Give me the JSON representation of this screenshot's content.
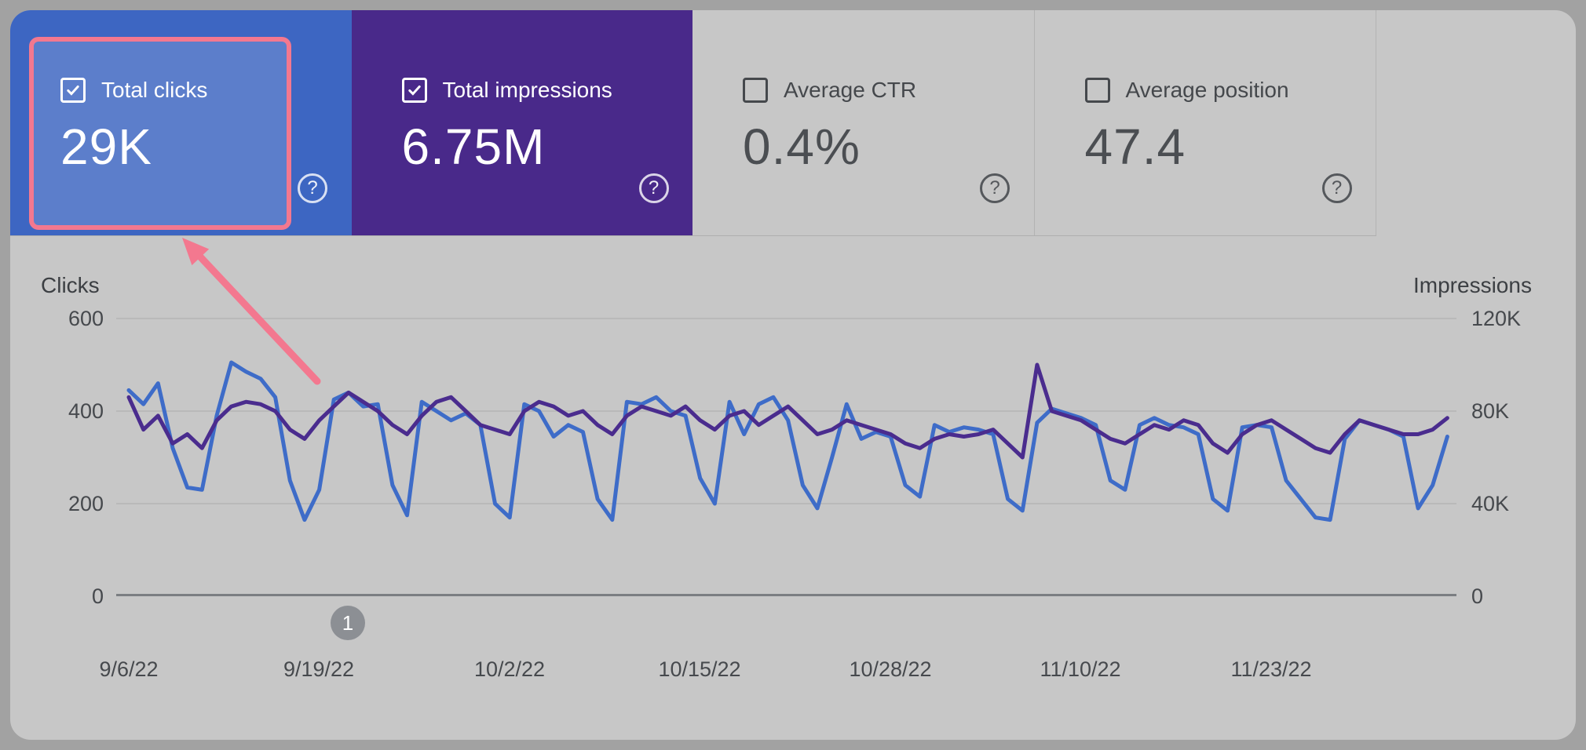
{
  "metrics": {
    "help_icon": "?",
    "cards": [
      {
        "label": "Total clicks",
        "value": "29K",
        "checked": true,
        "selected": true,
        "color": "#3d66c2",
        "highlighted": true
      },
      {
        "label": "Total impressions",
        "value": "6.75M",
        "checked": true,
        "selected": true,
        "color": "#49298a"
      },
      {
        "label": "Average CTR",
        "value": "0.4%",
        "checked": false,
        "selected": false
      },
      {
        "label": "Average position",
        "value": "47.4",
        "checked": false,
        "selected": false
      }
    ]
  },
  "annotation": {
    "marker_label": "1",
    "highlight_color": "#f3788f"
  },
  "chart_data": {
    "type": "line",
    "grid": true,
    "x_ticks": [
      "9/6/22",
      "9/19/22",
      "10/2/22",
      "10/15/22",
      "10/28/22",
      "11/10/22",
      "11/23/22"
    ],
    "x_start_label": "9/6/22",
    "point_interval": "daily",
    "left_axis": {
      "title": "Clicks",
      "ticks": [
        "600",
        "400",
        "200",
        "0"
      ],
      "range": [
        0,
        600
      ]
    },
    "right_axis": {
      "title": "Impressions",
      "ticks": [
        "120K",
        "80K",
        "40K",
        "0"
      ],
      "range": [
        0,
        120
      ],
      "values_unit": "thousands"
    },
    "series": [
      {
        "name": "Clicks",
        "axis": "left",
        "color": "#3e6cc8",
        "values": [
          445,
          415,
          460,
          320,
          235,
          230,
          390,
          505,
          485,
          470,
          430,
          250,
          165,
          230,
          425,
          440,
          410,
          415,
          240,
          175,
          420,
          400,
          380,
          395,
          370,
          200,
          170,
          415,
          400,
          345,
          370,
          355,
          210,
          165,
          420,
          415,
          430,
          400,
          390,
          255,
          200,
          420,
          350,
          415,
          430,
          380,
          240,
          190,
          300,
          415,
          340,
          355,
          345,
          240,
          215,
          370,
          355,
          365,
          360,
          350,
          210,
          185,
          375,
          405,
          395,
          385,
          370,
          250,
          230,
          370,
          385,
          370,
          365,
          350,
          210,
          185,
          365,
          370,
          365,
          250,
          210,
          170,
          165,
          340,
          380,
          370,
          360,
          345,
          190,
          240,
          345
        ]
      },
      {
        "name": "Impressions",
        "axis": "right",
        "color": "#4a2c8e",
        "values": [
          86,
          72,
          78,
          66,
          70,
          64,
          76,
          82,
          84,
          83,
          80,
          72,
          68,
          76,
          82,
          88,
          84,
          80,
          74,
          70,
          78,
          84,
          86,
          80,
          74,
          72,
          70,
          80,
          84,
          82,
          78,
          80,
          74,
          70,
          78,
          82,
          80,
          78,
          82,
          76,
          72,
          78,
          80,
          74,
          78,
          82,
          76,
          70,
          72,
          76,
          74,
          72,
          70,
          66,
          64,
          68,
          70,
          69,
          70,
          72,
          66,
          60,
          100,
          80,
          78,
          76,
          72,
          68,
          66,
          70,
          74,
          72,
          76,
          74,
          66,
          62,
          70,
          74,
          76,
          72,
          68,
          64,
          62,
          70,
          76,
          74,
          72,
          70,
          70,
          72,
          77
        ]
      }
    ]
  }
}
